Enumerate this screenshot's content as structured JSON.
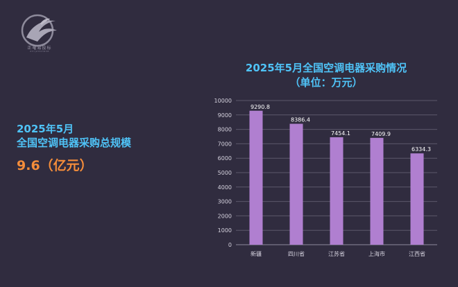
{
  "logo": {
    "icon": "phoenix-circle-logo",
    "text": "正曜易投标",
    "subtext": "ZHYJZHDHBHB"
  },
  "summary": {
    "line1": "2025年5月",
    "line2": "全国空调电器采购总规模",
    "value": "9.6（亿元）"
  },
  "chart_data": {
    "type": "bar",
    "title": "2025年5月全国空调电器采购情况",
    "subtitle": "（单位：万元）",
    "categories": [
      "新疆",
      "四川省",
      "江苏省",
      "上海市",
      "江西省"
    ],
    "values": [
      9290.8,
      8386.4,
      7454.1,
      7409.9,
      6334.3
    ],
    "value_labels": [
      "9290.8",
      "8386.4",
      "7454.1",
      "7409.9",
      "6334.3"
    ],
    "ylim": [
      0,
      10000
    ],
    "yticks": [
      "0",
      "1000",
      "2000",
      "3000",
      "4000",
      "5000",
      "6000",
      "7000",
      "8000",
      "9000",
      "10000"
    ],
    "grid": true,
    "bar_color": "#b07fd0",
    "title_color": "#4fc3f7",
    "accent_color": "#f58d3a",
    "background": "#302c3f"
  }
}
